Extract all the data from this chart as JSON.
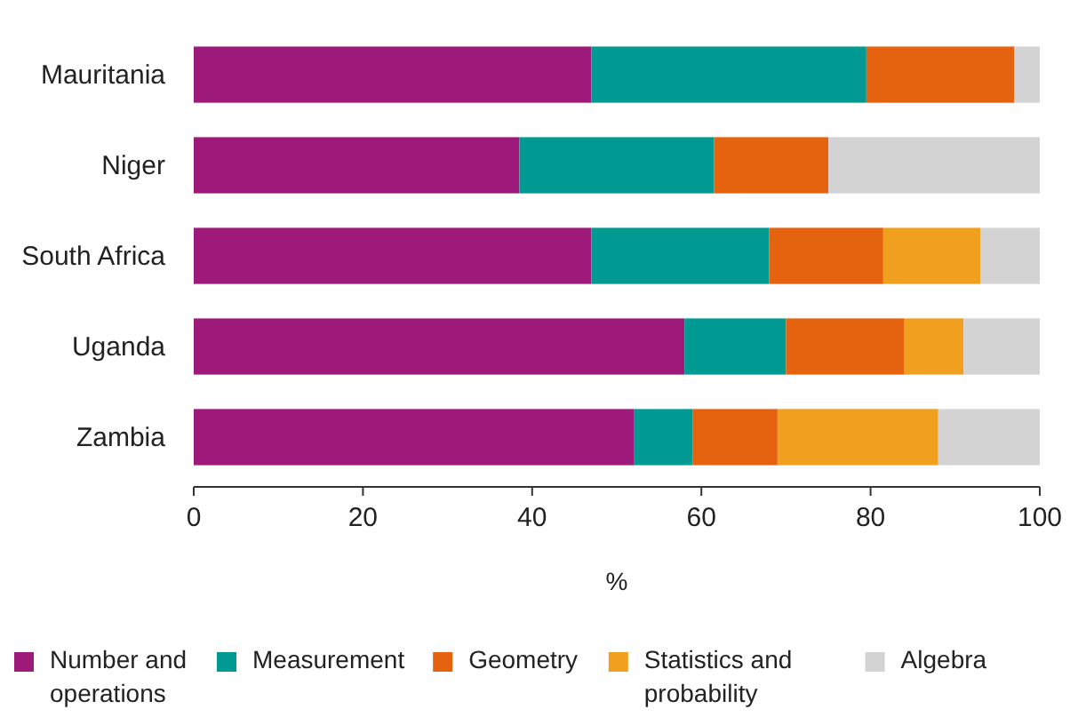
{
  "chart_data": {
    "type": "bar",
    "orientation": "horizontal",
    "stacked": true,
    "xlabel": "%",
    "categories": [
      "Mauritania",
      "Niger",
      "South Africa",
      "Uganda",
      "Zambia"
    ],
    "xlim": [
      0,
      100
    ],
    "xticks": [
      0,
      20,
      40,
      60,
      80,
      100
    ],
    "grid": false,
    "legend": "bottom",
    "series": [
      {
        "name": "Number and operations",
        "color": "#9e1a7a",
        "values": [
          47,
          38.5,
          47,
          58,
          52
        ]
      },
      {
        "name": "Measurement",
        "color": "#009a93",
        "values": [
          32.5,
          23,
          21,
          12,
          7
        ]
      },
      {
        "name": "Geometry",
        "color": "#e5620f",
        "values": [
          17.5,
          13.5,
          13.5,
          14,
          10
        ]
      },
      {
        "name": "Statistics and probability",
        "color": "#f0a01e",
        "values": [
          0,
          0,
          11.5,
          7,
          19
        ]
      },
      {
        "name": "Algebra",
        "color": "#d3d3d3",
        "values": [
          3,
          25,
          7,
          9,
          12
        ]
      }
    ]
  }
}
